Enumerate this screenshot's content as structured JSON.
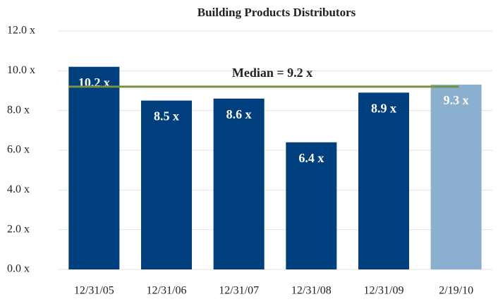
{
  "chart_data": {
    "type": "bar",
    "title": "Building Products Distributors",
    "categories": [
      "12/31/05",
      "12/31/06",
      "12/31/07",
      "12/31/08",
      "12/31/09",
      "2/19/10"
    ],
    "values": [
      10.2,
      8.5,
      8.6,
      6.4,
      8.9,
      9.3
    ],
    "value_labels": [
      "10.2 x",
      "8.5 x",
      "8.6 x",
      "6.4 x",
      "8.9 x",
      "9.3 x"
    ],
    "colors": [
      "#003f7d",
      "#003f7d",
      "#003f7d",
      "#003f7d",
      "#003f7d",
      "#8aafcf"
    ],
    "ylim": [
      0,
      12
    ],
    "yticks": [
      {
        "value": 0,
        "label": "0.0 x"
      },
      {
        "value": 2,
        "label": "2.0 x"
      },
      {
        "value": 4,
        "label": "4.0 x"
      },
      {
        "value": 6,
        "label": "6.0 x"
      },
      {
        "value": 8,
        "label": "8.0 x"
      },
      {
        "value": 10,
        "label": "10.0 x"
      },
      {
        "value": 12,
        "label": "12.0 x"
      }
    ],
    "grid": true,
    "median": {
      "value": 9.2,
      "label": "Median = 9.2 x",
      "color": "#77933c"
    }
  }
}
